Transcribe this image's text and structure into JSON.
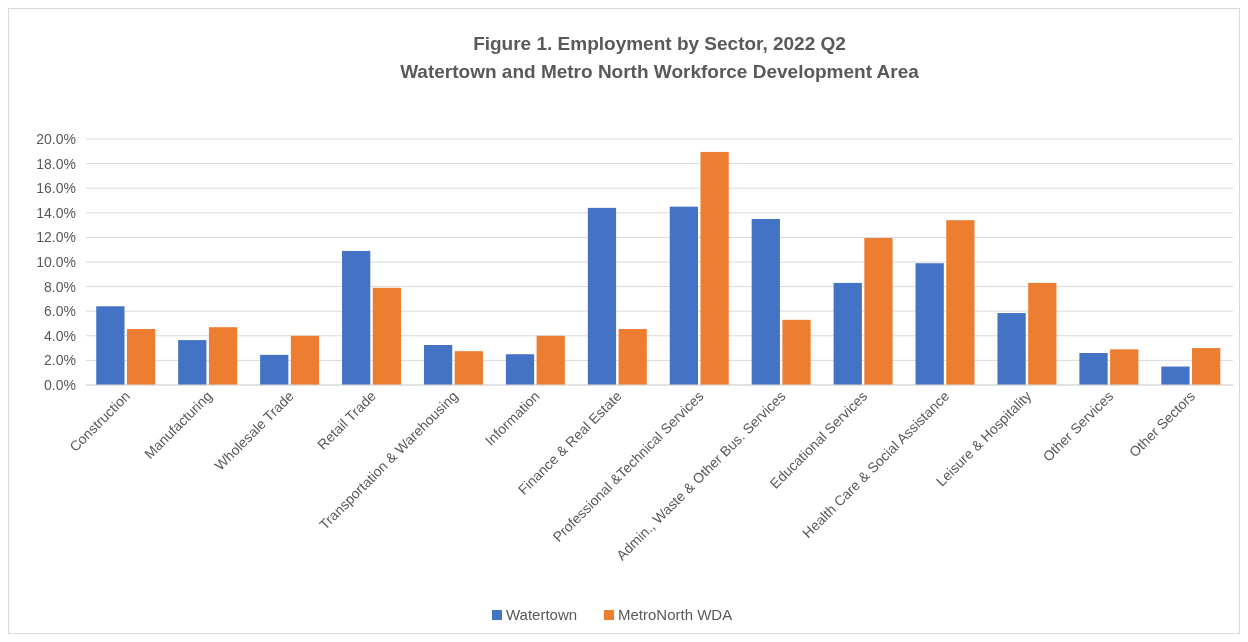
{
  "chart_data": {
    "type": "bar",
    "title": "Figure 1. Employment by Sector, 2022 Q2",
    "subtitle": "Watertown and Metro North Workforce Development Area",
    "categories": [
      "Construction",
      "Manufacturing",
      "Wholesale Trade",
      "Retail Trade",
      "Transportation & Warehousing",
      "Information",
      "Finance & Real Estate",
      "Professional &Technical Services",
      "Admin., Waste & Other Bus. Services",
      "Educational Services",
      "Health Care & Social Assistance",
      "Leisure & Hospitality",
      "Other Services",
      "Other Sectors"
    ],
    "series": [
      {
        "name": "Watertown",
        "color": "#4472c4",
        "values": [
          6.4,
          3.65,
          2.45,
          10.9,
          3.25,
          2.5,
          14.4,
          14.5,
          13.5,
          8.3,
          9.9,
          5.85,
          2.6,
          1.5
        ]
      },
      {
        "name": "MetroNorth WDA",
        "color": "#ed7d31",
        "values": [
          4.55,
          4.7,
          4.0,
          7.9,
          2.75,
          4.0,
          4.55,
          18.95,
          5.3,
          11.95,
          13.4,
          8.3,
          2.9,
          3.0
        ]
      }
    ],
    "ylim": [
      0,
      20
    ],
    "yticks": [
      {
        "value": 0,
        "label": "0.0%"
      },
      {
        "value": 2,
        "label": "2.0%"
      },
      {
        "value": 4,
        "label": "4.0%"
      },
      {
        "value": 6,
        "label": "6.0%"
      },
      {
        "value": 8,
        "label": "8.0%"
      },
      {
        "value": 10,
        "label": "10.0%"
      },
      {
        "value": 12,
        "label": "12.0%"
      },
      {
        "value": 14,
        "label": "14.0%"
      },
      {
        "value": 16,
        "label": "16.0%"
      },
      {
        "value": 18,
        "label": "18.0%"
      },
      {
        "value": 20,
        "label": "20.0%"
      }
    ],
    "grid": "y",
    "legend": "bottom"
  }
}
